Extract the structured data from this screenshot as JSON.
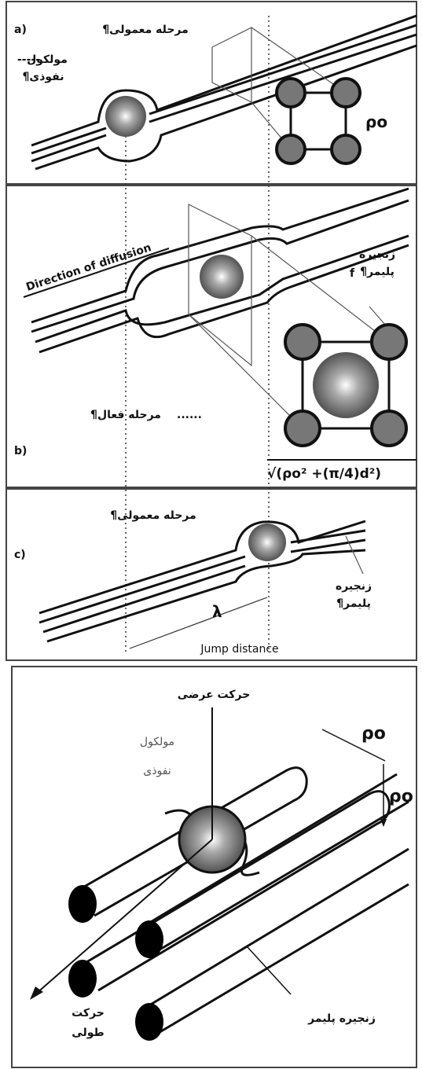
{
  "panel_a": {
    "label": "a)",
    "stage": "مرحله معمولی¶",
    "molecule": [
      "مولکول",
      "نفوذی¶"
    ],
    "molecule_dashes": "-----",
    "spacing": "ρo"
  },
  "panel_b": {
    "label": "b)",
    "direction": "Direction of diffusion",
    "chain": [
      "زنجیره",
      "پلیمر¶"
    ],
    "f_mark": "f",
    "stage": "مرحله فعال¶",
    "stage_dots": "......",
    "formula": "√(ρo² +(π/4)d²)"
  },
  "panel_c": {
    "label": "c)",
    "stage": "مرحله معمولی¶",
    "chain": [
      "زنجیره",
      "پلیمر¶"
    ],
    "lambda": "λ",
    "jump": "Jump distance"
  },
  "bottom": {
    "transverse": "حرکت عرضی",
    "molecule": [
      "مولکول",
      "نفوذی"
    ],
    "rho_1": "ρo",
    "rho_2": "ρo",
    "longitudinal": [
      "حرکت",
      "طولی"
    ],
    "chain": "زنجیره پلیمر"
  }
}
